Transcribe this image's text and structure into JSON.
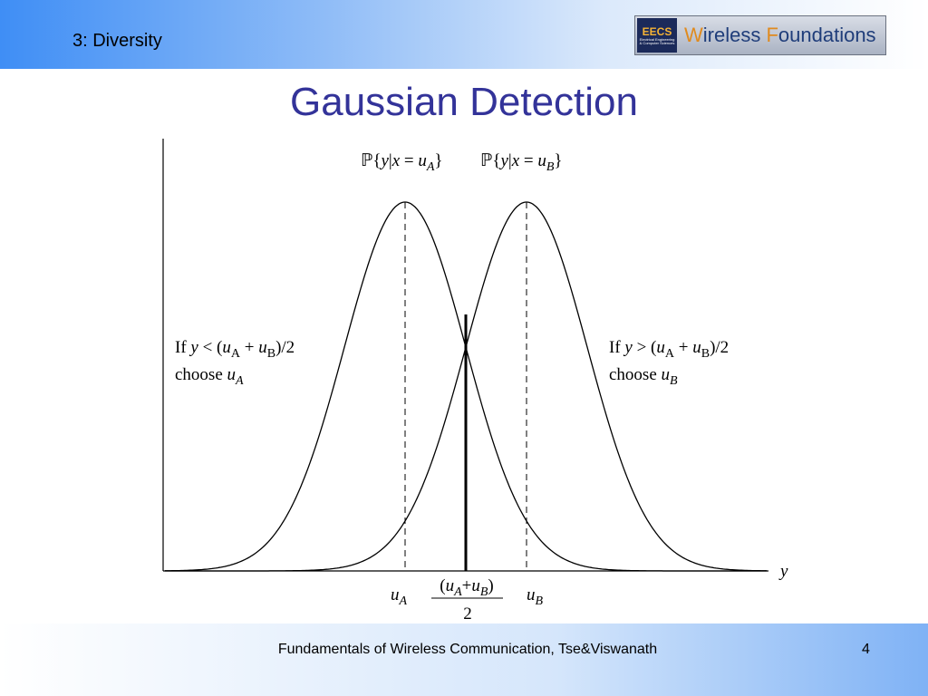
{
  "header": {
    "section": "3: Diversity",
    "logo": {
      "badge": "EECS",
      "badge_caption": "Electrical Engineering & Computer Sciences",
      "name": [
        "W",
        "ireless ",
        "F",
        "oundations"
      ]
    }
  },
  "title": "Gaussian Detection",
  "figure": {
    "pdf_a": [
      "ℙ{",
      "y",
      "|",
      "x",
      " = ",
      "u",
      "A",
      "}"
    ],
    "pdf_b": [
      "ℙ{",
      "y",
      "|",
      "x",
      " = ",
      "u",
      "B",
      "}"
    ],
    "rule_left": {
      "line1": [
        "If ",
        "y",
        " < (",
        "u",
        "A",
        " + ",
        "u",
        "B",
        ")/2"
      ],
      "line2": [
        "choose ",
        "u",
        "A"
      ]
    },
    "rule_right": {
      "line1": [
        "If ",
        "y",
        " > (",
        "u",
        "A",
        " + ",
        "u",
        "B",
        ")/2"
      ],
      "line2": [
        "choose ",
        "u",
        "B"
      ]
    },
    "axis_label": "y",
    "tick_a": [
      "u",
      "A"
    ],
    "tick_b": [
      "u",
      "B"
    ],
    "threshold_numerator": [
      "(",
      "u",
      "A",
      "+",
      "u",
      "B",
      ")"
    ],
    "threshold_denominator": "2"
  },
  "footer": {
    "text": "Fundamentals of Wireless Communication, Tse&Viswanath",
    "page": "4"
  }
}
